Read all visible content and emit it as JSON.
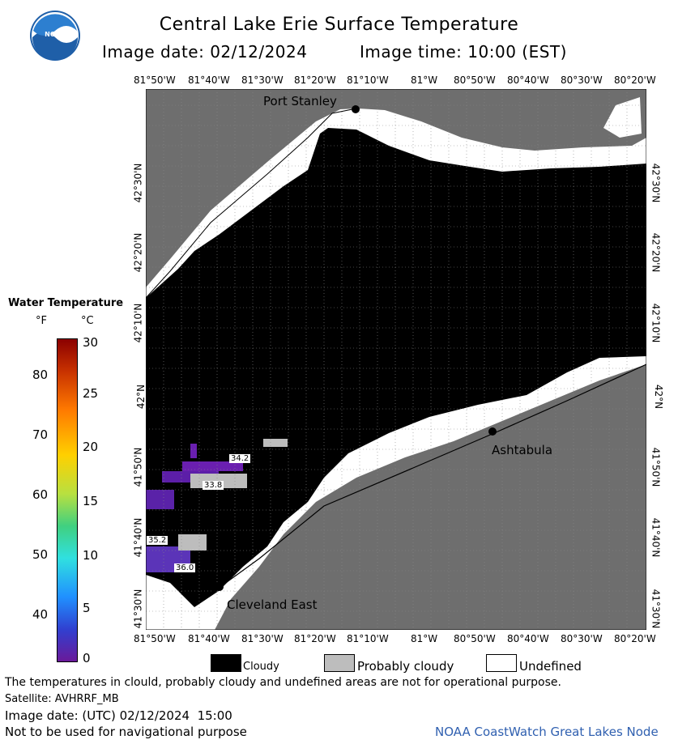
{
  "header": {
    "title": "Central Lake Erie Surface Temperature",
    "image_date": "Image date: 02/12/2024",
    "image_time": "Image time: 10:00 (EST)"
  },
  "map": {
    "lon_ticks": [
      "81°50'W",
      "81°40'W",
      "81°30'W",
      "81°20'W",
      "81°10'W",
      "81°W",
      "80°50'W",
      "80°40'W",
      "80°30'W",
      "80°20'W"
    ],
    "lat_ticks": [
      "42°30'N",
      "42°20'N",
      "42°10'N",
      "42°N",
      "41°50'N",
      "41°40'N",
      "41°30'N"
    ],
    "cities": {
      "port_stanley": "Port Stanley",
      "ashtabula": "Ashtabula",
      "cleveland_east": "Cleveland East"
    },
    "temp_labels": [
      "34.2",
      "33.8",
      "35.2",
      "36.0"
    ]
  },
  "colorbar": {
    "title": "Water Temperature",
    "unit_f": "°F",
    "unit_c": "°C",
    "f_ticks": [
      "80",
      "70",
      "60",
      "50",
      "40"
    ],
    "c_ticks": [
      "30",
      "25",
      "20",
      "15",
      "10",
      "5",
      "0"
    ]
  },
  "legend": {
    "cloudy": "Cloudy",
    "probably_cloudy": "Probably cloudy",
    "undefined": "Undefined"
  },
  "footer": {
    "disclaimer": "The temperatures in clould, probably cloudy and undefined areas are not for operational purpose.",
    "satellite": "Satellite: AVHRRF_MB",
    "utc_date": "Image date: (UTC) 02/12/2024  15:00",
    "nav": "Not to be used for navigational purpose",
    "credit": "NOAA CoastWatch Great Lakes Node"
  },
  "logo_text": "NOAA"
}
